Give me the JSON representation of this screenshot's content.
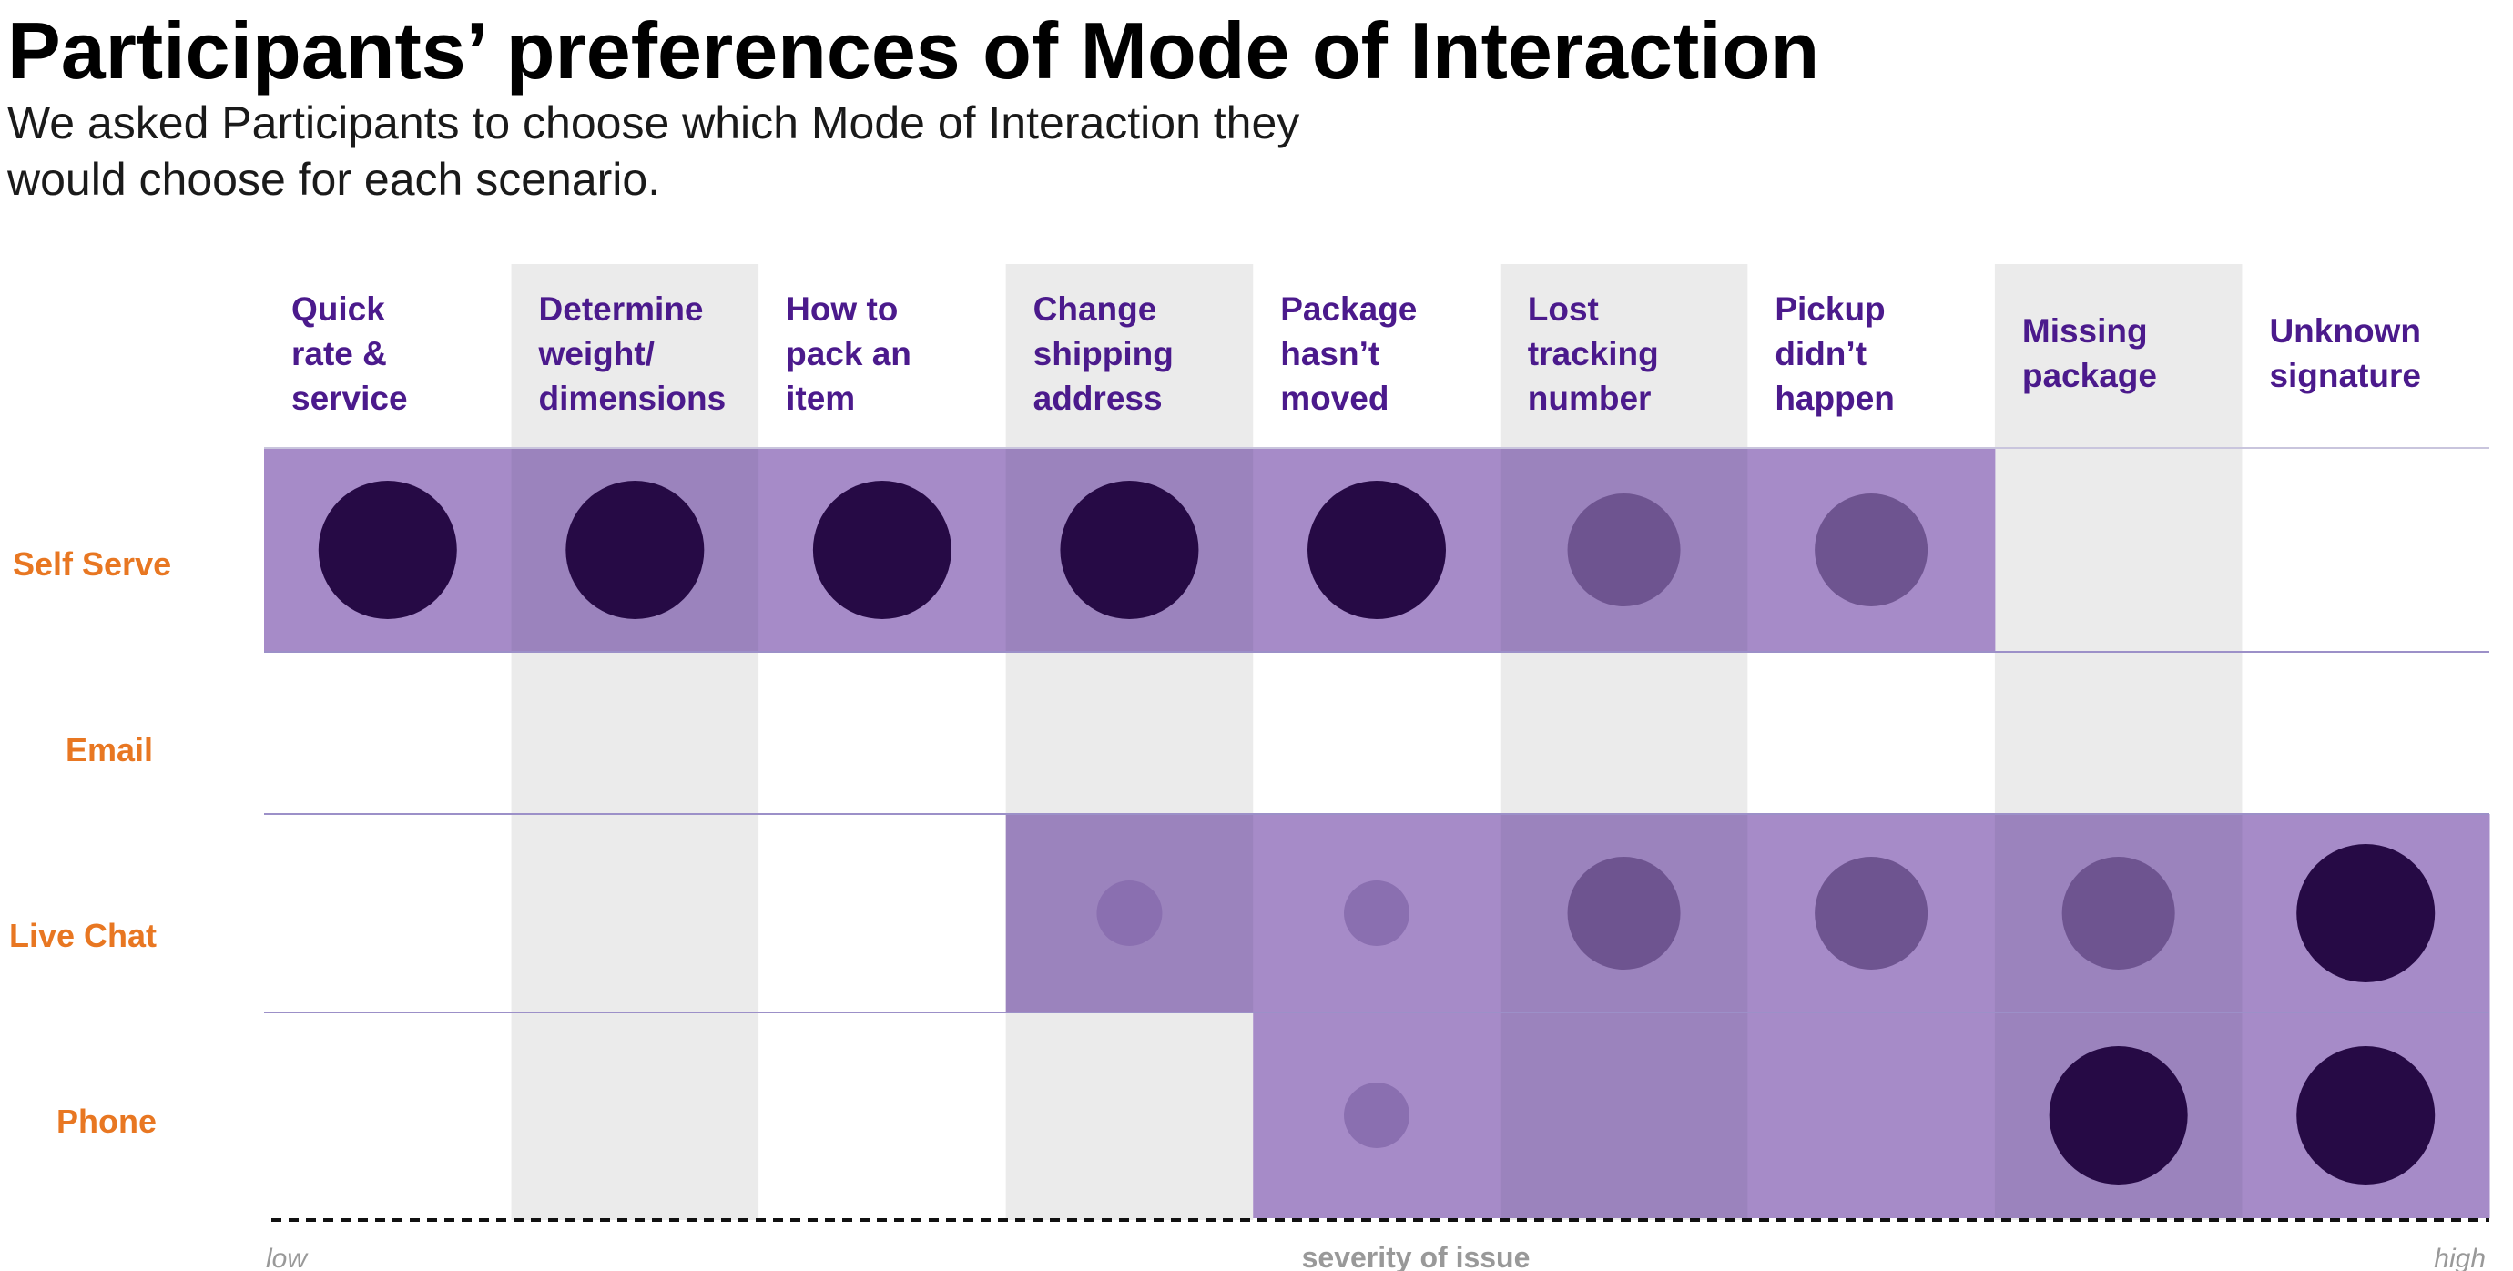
{
  "chart_data": {
    "type": "bubble-matrix",
    "title": "Participants’ preferences of Mode of Interaction",
    "subtitle": "We asked Participants to choose which Mode of Interaction they would choose for each scenario.",
    "xlabel": "severity of issue",
    "x_axis_low_label": "low",
    "x_axis_high_label": "high",
    "categories": [
      [
        "Quick",
        "rate &",
        "service"
      ],
      [
        "Determine",
        "weight/",
        "dimensions"
      ],
      [
        "How to",
        "pack an",
        "item"
      ],
      [
        "Change",
        "shipping",
        "address"
      ],
      [
        "Package",
        "hasn’t",
        "moved"
      ],
      [
        "Lost",
        "tracking",
        "number"
      ],
      [
        "Pickup",
        "didn’t",
        "happen"
      ],
      [
        "Missing",
        "package"
      ],
      [
        "Unknown",
        "signature"
      ]
    ],
    "rows": [
      "Self Serve",
      "Email",
      "Live Chat",
      "Phone"
    ],
    "preference_levels": {
      "0": "none",
      "1": "low",
      "2": "medium",
      "3": "high"
    },
    "series": [
      {
        "name": "Self Serve",
        "values": [
          3,
          3,
          3,
          3,
          3,
          2,
          2,
          0,
          0
        ]
      },
      {
        "name": "Email",
        "values": [
          0,
          0,
          0,
          0,
          0,
          0,
          0,
          0,
          0
        ]
      },
      {
        "name": "Live Chat",
        "values": [
          0,
          0,
          0,
          1,
          1,
          2,
          2,
          2,
          3
        ]
      },
      {
        "name": "Phone",
        "values": [
          0,
          0,
          0,
          0,
          1,
          0,
          0,
          3,
          3
        ]
      }
    ],
    "highlight_ranges": {
      "Self Serve": [
        0,
        6
      ],
      "Email": null,
      "Live Chat": [
        3,
        8
      ],
      "Phone": [
        4,
        8
      ]
    }
  },
  "colors": {
    "column_label": "#4b1a8c",
    "row_label": "#e87722",
    "column_shade": "#ebebeb",
    "row_band": "#a68bc8",
    "row_band_on_shade": "#9b83bd",
    "row_divider": "#9c90c8",
    "row_divider_plain": "#c9c5dd",
    "bubble_high": "#260a45",
    "bubble_medium": "#6e5490",
    "bubble_low": "#8a6fb0",
    "axis_line": "#111111",
    "axis_text": "#999999"
  }
}
